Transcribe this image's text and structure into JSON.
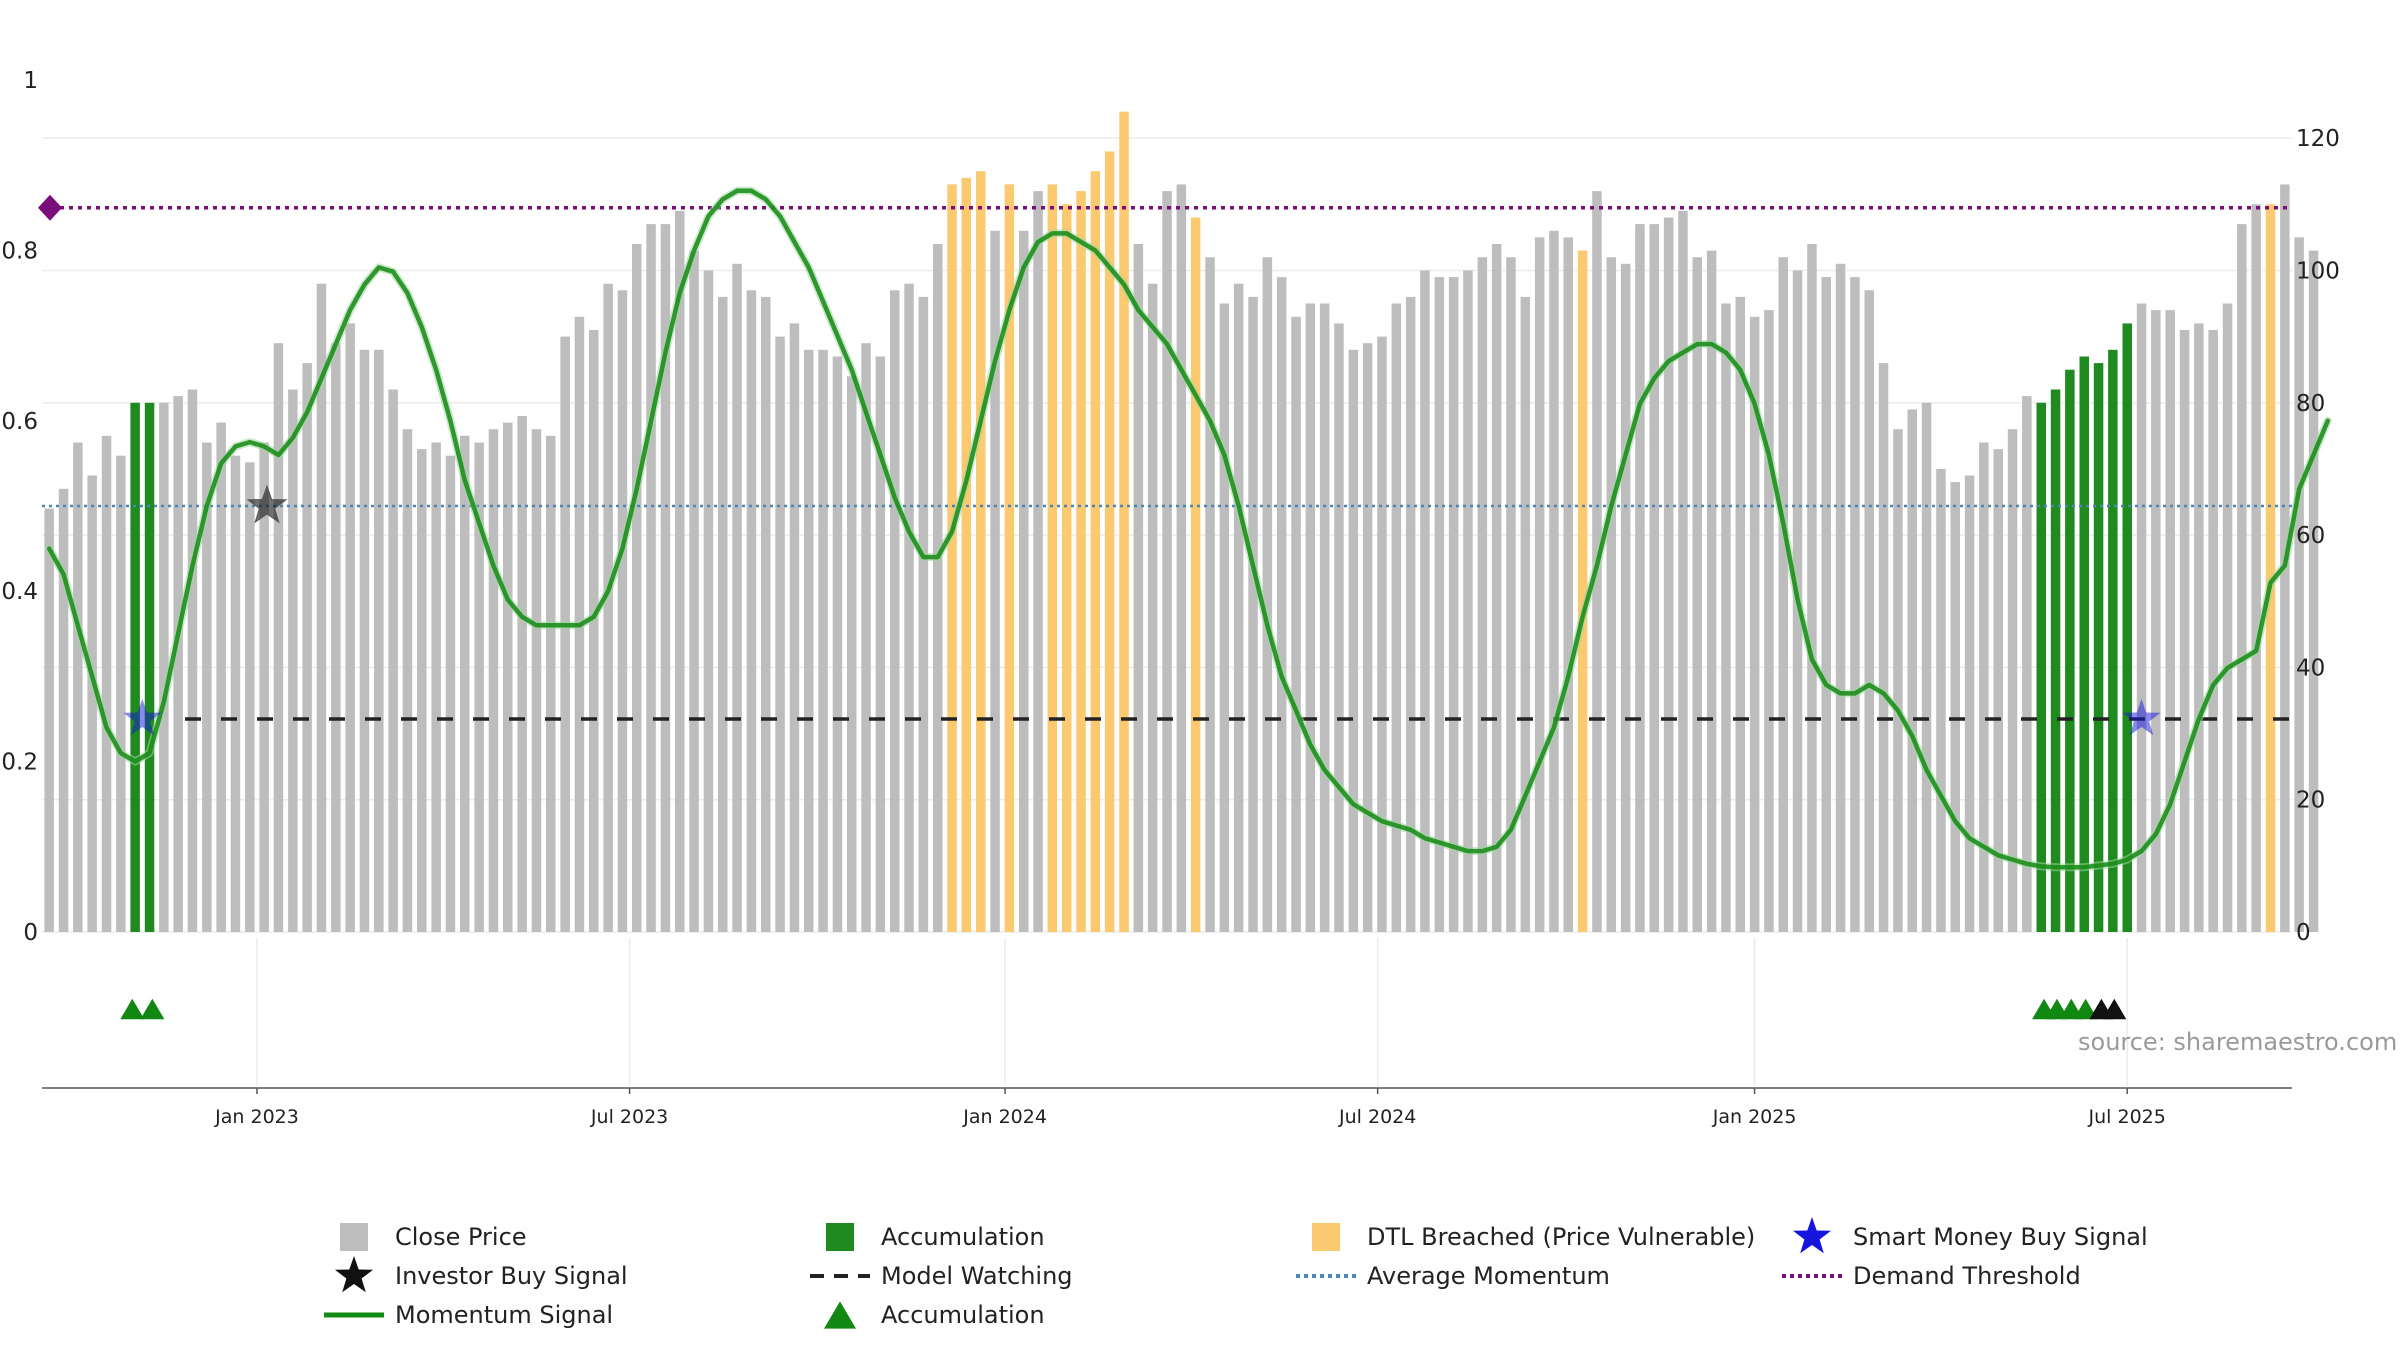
{
  "chart_data": {
    "type": "bar",
    "source_label": "source: sharemaestro.com",
    "colors": {
      "close_price": "#bdbdbd",
      "accumulation": "#1f8a1f",
      "dtl_breached": "#fbc96f",
      "momentum": "#138a13",
      "average_momentum": "#4a86b8",
      "demand_threshold": "#7a0e7a",
      "model_watching": "#222222",
      "smart_money": "#1515dd",
      "investor_buy": "#111111",
      "accumulation_triangle": "#118811"
    },
    "left_axis": {
      "ticks": [
        {
          "value": 0,
          "label": "0"
        },
        {
          "value": 0.2,
          "label": "0.2"
        },
        {
          "value": 0.4,
          "label": "0.4"
        },
        {
          "value": 0.6,
          "label": "0.6"
        },
        {
          "value": 0.8,
          "label": "0.8"
        },
        {
          "value": 1,
          "label": "1"
        }
      ],
      "range": [
        0,
        1
      ]
    },
    "right_axis": {
      "ticks": [
        {
          "value": 0,
          "label": "0"
        },
        {
          "value": 20,
          "label": "20"
        },
        {
          "value": 40,
          "label": "40"
        },
        {
          "value": 60,
          "label": "60"
        },
        {
          "value": 80,
          "label": "80"
        },
        {
          "value": 100,
          "label": "100"
        },
        {
          "value": 120,
          "label": "120"
        }
      ],
      "range": [
        0,
        130.3
      ]
    },
    "x_axis": {
      "ticks": [
        {
          "week": 14.5,
          "label": "Jan 2023"
        },
        {
          "week": 40.5,
          "label": "Jul 2023"
        },
        {
          "week": 66.7,
          "label": "Jan 2024"
        },
        {
          "week": 92.7,
          "label": "Jul 2024"
        },
        {
          "week": 119,
          "label": "Jan 2025"
        },
        {
          "week": 145,
          "label": "Jul 2025"
        }
      ],
      "range": [
        -0.5,
        156.5
      ]
    },
    "close_price": [
      64,
      67,
      74,
      69,
      75,
      72,
      80,
      80,
      80,
      81,
      82,
      74,
      77,
      72,
      71,
      74,
      89,
      82,
      86,
      98,
      89,
      92,
      88,
      88,
      82,
      76,
      73,
      74,
      72,
      75,
      74,
      76,
      77,
      78,
      76,
      75,
      90,
      93,
      91,
      98,
      97,
      104,
      107,
      107,
      109,
      103,
      100,
      96,
      101,
      97,
      96,
      90,
      92,
      88,
      88,
      87,
      84,
      89,
      87,
      97,
      98,
      96,
      104,
      113,
      114,
      115,
      106,
      113,
      106,
      112,
      113,
      110,
      112,
      115,
      118,
      124,
      104,
      98,
      112,
      113,
      108,
      102,
      95,
      98,
      96,
      102,
      99,
      93,
      95,
      95,
      92,
      88,
      89,
      90,
      95,
      96,
      100,
      99,
      99,
      100,
      102,
      104,
      102,
      96,
      105,
      106,
      105,
      103,
      112,
      102,
      101,
      107,
      107,
      108,
      109,
      102,
      103,
      95,
      96,
      93,
      94,
      102,
      100,
      104,
      99,
      101,
      99,
      97,
      86,
      76,
      79,
      80,
      70,
      68,
      69,
      74,
      73,
      76,
      81,
      80,
      82,
      85,
      87,
      86,
      88,
      92,
      95,
      94,
      94,
      91,
      92,
      91,
      95,
      107,
      110,
      110,
      113,
      105,
      103
    ],
    "accumulation_weeks": [
      6,
      7,
      139,
      140,
      141,
      142,
      143,
      144,
      145
    ],
    "dtl_breached_weeks": [
      63,
      64,
      65,
      67,
      70,
      71,
      72,
      73,
      74,
      75,
      80,
      107,
      155
    ],
    "momentum_signal": [
      0.45,
      0.42,
      0.36,
      0.3,
      0.24,
      0.21,
      0.2,
      0.21,
      0.27,
      0.35,
      0.43,
      0.5,
      0.55,
      0.57,
      0.575,
      0.57,
      0.56,
      0.58,
      0.61,
      0.65,
      0.69,
      0.73,
      0.76,
      0.78,
      0.775,
      0.75,
      0.71,
      0.66,
      0.6,
      0.53,
      0.48,
      0.43,
      0.39,
      0.37,
      0.36,
      0.36,
      0.36,
      0.36,
      0.37,
      0.4,
      0.45,
      0.52,
      0.6,
      0.68,
      0.75,
      0.8,
      0.84,
      0.86,
      0.87,
      0.87,
      0.86,
      0.84,
      0.81,
      0.78,
      0.74,
      0.7,
      0.66,
      0.61,
      0.56,
      0.51,
      0.47,
      0.44,
      0.44,
      0.47,
      0.53,
      0.6,
      0.67,
      0.73,
      0.78,
      0.81,
      0.82,
      0.82,
      0.81,
      0.8,
      0.78,
      0.76,
      0.73,
      0.71,
      0.69,
      0.66,
      0.63,
      0.6,
      0.56,
      0.5,
      0.43,
      0.36,
      0.3,
      0.26,
      0.22,
      0.19,
      0.17,
      0.15,
      0.14,
      0.13,
      0.125,
      0.12,
      0.11,
      0.105,
      0.1,
      0.095,
      0.095,
      0.1,
      0.12,
      0.16,
      0.2,
      0.24,
      0.3,
      0.37,
      0.43,
      0.5,
      0.56,
      0.62,
      0.65,
      0.67,
      0.68,
      0.69,
      0.69,
      0.68,
      0.66,
      0.62,
      0.56,
      0.48,
      0.39,
      0.32,
      0.29,
      0.28,
      0.28,
      0.29,
      0.28,
      0.26,
      0.23,
      0.19,
      0.16,
      0.13,
      0.11,
      0.1,
      0.09,
      0.085,
      0.08,
      0.077,
      0.076,
      0.076,
      0.076,
      0.078,
      0.08,
      0.085,
      0.095,
      0.115,
      0.15,
      0.2,
      0.25,
      0.29,
      0.31,
      0.32,
      0.33,
      0.41,
      0.43,
      0.52,
      0.56,
      0.6
    ],
    "average_momentum": 0.5,
    "demand_threshold": 0.85,
    "model_watching": 0.25,
    "smart_money_buy_signals": [
      {
        "week": 6.5,
        "value": 0.25
      },
      {
        "week": 146,
        "value": 0.25
      }
    ],
    "investor_buy_signals": [
      {
        "week": 15.2,
        "value": 0.5
      }
    ],
    "accumulation_triangle_weeks": [
      5.8,
      7.2,
      139.2,
      140.1,
      141.1,
      142.1
    ],
    "investor_triangle_weeks": [
      143.2,
      144.1
    ],
    "legend": [
      {
        "label": "Close Price",
        "kind": "square",
        "color_key": "close_price"
      },
      {
        "label": "Accumulation",
        "kind": "square",
        "color_key": "accumulation"
      },
      {
        "label": "DTL Breached (Price Vulnerable)",
        "kind": "square",
        "color_key": "dtl_breached"
      },
      {
        "label": "Smart Money Buy Signal",
        "kind": "star",
        "color_key": "smart_money"
      },
      {
        "label": "Investor Buy Signal",
        "kind": "star",
        "color_key": "investor_buy"
      },
      {
        "label": "Model Watching",
        "kind": "dash",
        "color_key": "model_watching"
      },
      {
        "label": "Average Momentum",
        "kind": "dot",
        "color_key": "average_momentum"
      },
      {
        "label": "Demand Threshold",
        "kind": "dot",
        "color_key": "demand_threshold"
      },
      {
        "label": "Momentum Signal",
        "kind": "line",
        "color_key": "momentum"
      },
      {
        "label": "Accumulation",
        "kind": "triangle",
        "color_key": "accumulation_triangle"
      }
    ]
  }
}
